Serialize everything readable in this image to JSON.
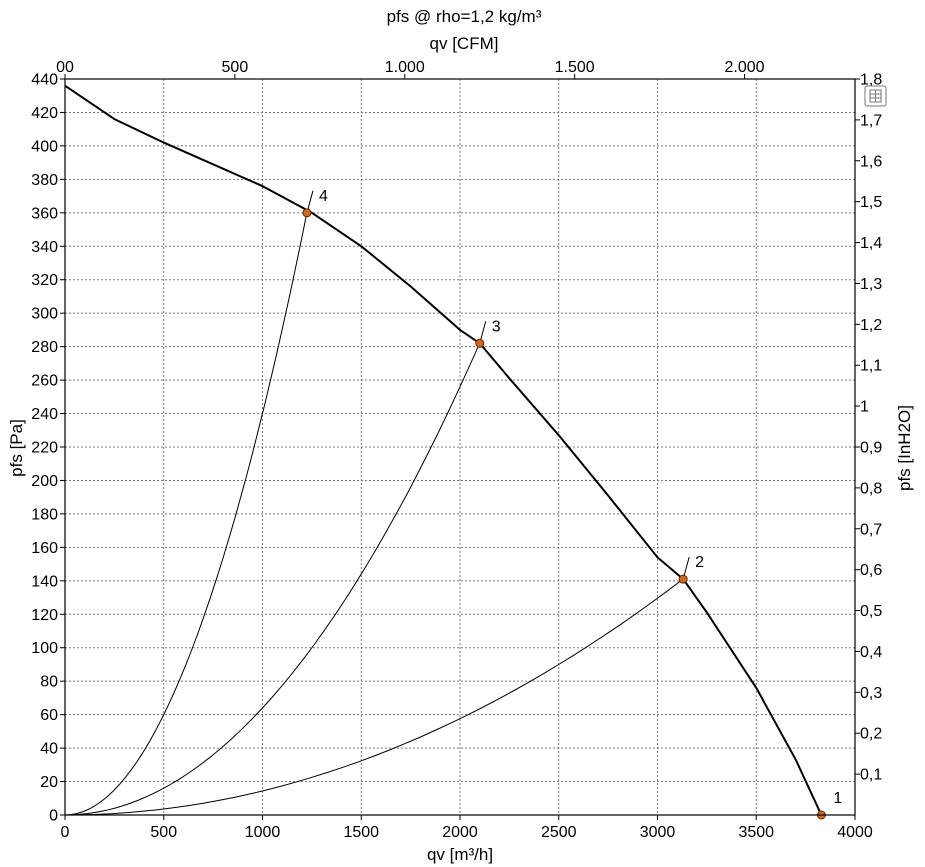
{
  "chart_data": {
    "type": "line",
    "title": "pfs @ rho=1,2 kg/m³",
    "xlabel": "qv [m³/h]",
    "ylabel": "pfs [Pa]",
    "xlabel_top": "qv [CFM]",
    "ylabel_right": "pfs [InH2O]",
    "xlim": [
      0,
      4000
    ],
    "ylim": [
      0,
      440
    ],
    "xlim_top": [
      0,
      2325
    ],
    "ylim_right": [
      0,
      1.8
    ],
    "x_ticks": [
      "0",
      "500",
      "1000",
      "1500",
      "2000",
      "2500",
      "3000",
      "3500",
      "4000"
    ],
    "y_ticks": [
      "0",
      "20",
      "40",
      "60",
      "80",
      "100",
      "120",
      "140",
      "160",
      "180",
      "200",
      "220",
      "240",
      "260",
      "280",
      "300",
      "320",
      "340",
      "360",
      "380",
      "400",
      "420",
      "440"
    ],
    "x_top_ticks": [
      {
        "label": "00",
        "value": 0
      },
      {
        "label": "500",
        "value": 500
      },
      {
        "label": "1.000",
        "value": 1000
      },
      {
        "label": "1.500",
        "value": 1500
      },
      {
        "label": "2.000",
        "value": 2000
      }
    ],
    "y_right_ticks": [
      {
        "label": "0,1",
        "value": 0.1
      },
      {
        "label": "0,2",
        "value": 0.2
      },
      {
        "label": "0,3",
        "value": 0.3
      },
      {
        "label": "0,4",
        "value": 0.4
      },
      {
        "label": "0,5",
        "value": 0.5
      },
      {
        "label": "0,6",
        "value": 0.6
      },
      {
        "label": "0,7",
        "value": 0.7
      },
      {
        "label": "0,8",
        "value": 0.8
      },
      {
        "label": "0,9",
        "value": 0.9
      },
      {
        "label": "1",
        "value": 1.0
      },
      {
        "label": "1,1",
        "value": 1.1
      },
      {
        "label": "1,2",
        "value": 1.2
      },
      {
        "label": "1,3",
        "value": 1.3
      },
      {
        "label": "1,4",
        "value": 1.4
      },
      {
        "label": "1,5",
        "value": 1.5
      },
      {
        "label": "1,6",
        "value": 1.6
      },
      {
        "label": "1,7",
        "value": 1.7
      },
      {
        "label": "1,8",
        "value": 1.8
      }
    ],
    "grid": true,
    "fan_curve": {
      "x": [
        0,
        250,
        500,
        750,
        1000,
        1250,
        1500,
        1750,
        2000,
        2100,
        2250,
        2500,
        2750,
        3000,
        3130,
        3250,
        3500,
        3700,
        3830
      ],
      "y": [
        436,
        416,
        402,
        389,
        376,
        360,
        340,
        316,
        290,
        282,
        261,
        227,
        191,
        154,
        141,
        121,
        76,
        33,
        0
      ]
    },
    "system_curves": [
      {
        "x": [
          0,
          1225
        ],
        "y": [
          0,
          360
        ],
        "k": 0.00024
      },
      {
        "x": [
          0,
          2100
        ],
        "y": [
          0,
          282
        ],
        "k": 6.4e-05
      },
      {
        "x": [
          0,
          3130
        ],
        "y": [
          0,
          141
        ],
        "k": 1.44e-05
      }
    ],
    "points": [
      {
        "label": "1",
        "x": 3830,
        "y": 0
      },
      {
        "label": "2",
        "x": 3130,
        "y": 141
      },
      {
        "label": "3",
        "x": 2100,
        "y": 282
      },
      {
        "label": "4",
        "x": 1225,
        "y": 360
      }
    ],
    "colors": {
      "curve": "#000000",
      "point_fill": "#d2691e",
      "point_stroke": "#5a2a00",
      "grid": "#7a7a7a"
    },
    "control_icon": "table-icon"
  }
}
